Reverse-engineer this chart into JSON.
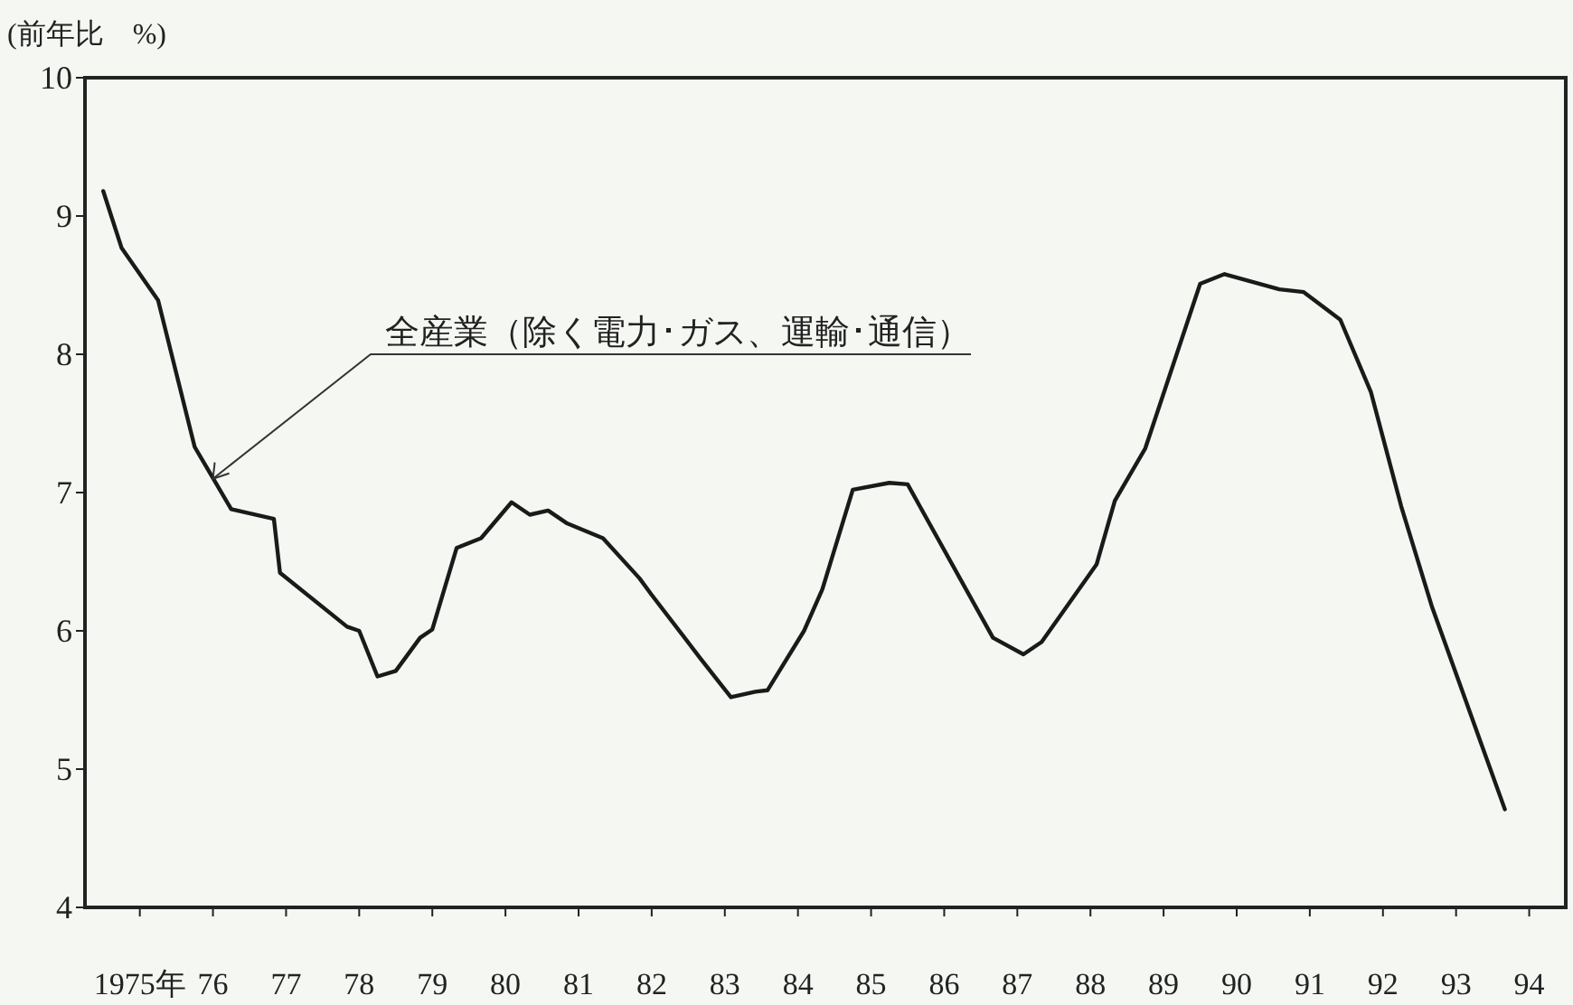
{
  "chart_data": {
    "type": "line",
    "ylabel": "(前年比　%)",
    "annotations": [
      {
        "text": "全産業（除く電力･ガス、運輸･通信）",
        "x": "1976-07",
        "y": 7.1
      }
    ],
    "series": [
      {
        "color": "#1a1a1a",
        "x": [
          "1975-01",
          "1975-04",
          "1975-10",
          "1976-04",
          "1976-10",
          "1977-05",
          "1977-06",
          "1978-05",
          "1978-07",
          "1978-10",
          "1979-01",
          "1979-05",
          "1979-07",
          "1979-11",
          "1980-03",
          "1980-08",
          "1980-11",
          "1981-02",
          "1981-05",
          "1981-11",
          "1982-05",
          "1982-07",
          "1983-03",
          "1983-08",
          "1983-12",
          "1984-02",
          "1984-08",
          "1984-11",
          "1985-04",
          "1985-10",
          "1986-01",
          "1987-03",
          "1987-08",
          "1987-11",
          "1988-08",
          "1988-11",
          "1989-04",
          "1990-01",
          "1990-05",
          "1991-02",
          "1991-06",
          "1991-12",
          "1992-05",
          "1992-10",
          "1993-03",
          "1993-11",
          "1994-03"
        ],
        "values": [
          9.18,
          8.77,
          8.39,
          7.33,
          6.88,
          6.81,
          6.42,
          6.03,
          6.0,
          5.67,
          5.71,
          5.95,
          6.01,
          6.6,
          6.67,
          6.93,
          6.84,
          6.87,
          6.78,
          6.67,
          6.38,
          6.26,
          5.8,
          5.52,
          5.56,
          5.57,
          6.0,
          6.3,
          7.02,
          7.07,
          7.06,
          5.95,
          5.83,
          5.92,
          6.48,
          6.94,
          7.32,
          8.51,
          8.58,
          8.47,
          8.45,
          8.25,
          7.73,
          6.9,
          6.18,
          5.2,
          4.71
        ]
      }
    ],
    "xlim": [
      "1974-10",
      "1995-01"
    ],
    "xticks": [
      {
        "value": "1975-07",
        "label": "1975年"
      },
      {
        "value": "1976-07",
        "label": "76"
      },
      {
        "value": "1977-07",
        "label": "77"
      },
      {
        "value": "1978-07",
        "label": "78"
      },
      {
        "value": "1979-07",
        "label": "79"
      },
      {
        "value": "1980-07",
        "label": "80"
      },
      {
        "value": "1981-07",
        "label": "81"
      },
      {
        "value": "1982-07",
        "label": "82"
      },
      {
        "value": "1983-07",
        "label": "83"
      },
      {
        "value": "1984-07",
        "label": "84"
      },
      {
        "value": "1985-07",
        "label": "85"
      },
      {
        "value": "1986-07",
        "label": "86"
      },
      {
        "value": "1987-07",
        "label": "87"
      },
      {
        "value": "1988-07",
        "label": "88"
      },
      {
        "value": "1989-07",
        "label": "89"
      },
      {
        "value": "1990-07",
        "label": "90"
      },
      {
        "value": "1991-07",
        "label": "91"
      },
      {
        "value": "1992-07",
        "label": "92"
      },
      {
        "value": "1993-07",
        "label": "93"
      },
      {
        "value": "1994-07",
        "label": "94"
      }
    ],
    "ylim": [
      4,
      10
    ],
    "yticks": [
      4,
      5,
      6,
      7,
      8,
      9,
      10
    ],
    "grid": false,
    "marker": "none",
    "line_style": "solid"
  }
}
